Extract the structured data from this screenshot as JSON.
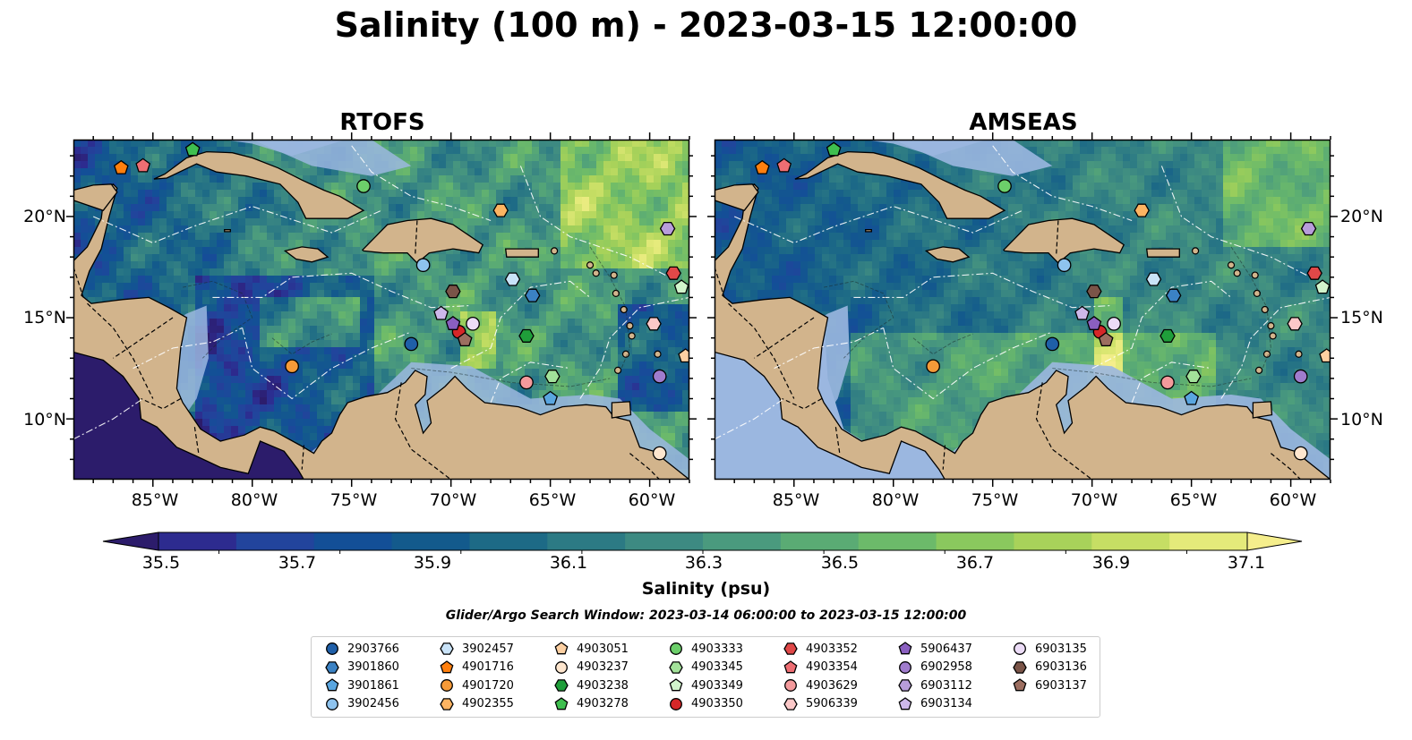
{
  "title": "Salinity (100 m) - 2023-03-15 12:00:00",
  "panels": [
    {
      "title": "RTOFS",
      "style": "rtofs"
    },
    {
      "title": "AMSEAS",
      "style": "amseas"
    }
  ],
  "map": {
    "lon_range": [
      -89,
      -58
    ],
    "lat_range": [
      7,
      23.8
    ],
    "lat_ticks": [
      "20°N",
      "15°N",
      "10°N"
    ],
    "lat_tick_values": [
      20,
      15,
      10
    ],
    "lon_ticks": [
      "85°W",
      "80°W",
      "75°W",
      "70°W",
      "65°W",
      "60°W"
    ],
    "lon_tick_values": [
      -85,
      -80,
      -75,
      -70,
      -65,
      -60
    ],
    "land_color": "#d2b48c",
    "shallow_water_color": "#9bb7e0"
  },
  "colorbar": {
    "label": "Salinity (psu)",
    "ticks": [
      "35.5",
      "35.7",
      "35.9",
      "36.1",
      "36.3",
      "36.5",
      "36.7",
      "36.9",
      "37.1"
    ],
    "tick_values": [
      35.5,
      35.7,
      35.9,
      36.1,
      36.3,
      36.5,
      36.7,
      36.9,
      37.1
    ],
    "range": [
      35.4,
      37.2
    ],
    "colors": [
      "#2c1c6b",
      "#2d2b8f",
      "#22449c",
      "#134f97",
      "#135a8c",
      "#1d6a86",
      "#2c7a84",
      "#3d8a82",
      "#4a9a7e",
      "#5aab74",
      "#6cba6a",
      "#8ac85e",
      "#a8d25a",
      "#c6de64",
      "#e4ea7a",
      "#f5ee8c"
    ]
  },
  "search_window": "Glider/Argo Search Window: 2023-03-14 06:00:00 to 2023-03-15 12:00:00",
  "legend": [
    {
      "label": "2903766",
      "color": "#1f5fa8",
      "shape": "circle"
    },
    {
      "label": "3901860",
      "color": "#3b82c4",
      "shape": "hexagon"
    },
    {
      "label": "3901861",
      "color": "#5aa6e0",
      "shape": "pentagon"
    },
    {
      "label": "3902456",
      "color": "#8ec3ee",
      "shape": "circle"
    },
    {
      "label": "3902457",
      "color": "#c9e3f8",
      "shape": "hexagon"
    },
    {
      "label": "4901716",
      "color": "#ff7f0e",
      "shape": "pentagon"
    },
    {
      "label": "4901720",
      "color": "#f59a38",
      "shape": "circle"
    },
    {
      "label": "4902355",
      "color": "#fdb462",
      "shape": "hexagon"
    },
    {
      "label": "4903051",
      "color": "#fdd0a2",
      "shape": "pentagon"
    },
    {
      "label": "4903237",
      "color": "#fee6ce",
      "shape": "circle"
    },
    {
      "label": "4903238",
      "color": "#1f9e3a",
      "shape": "hexagon"
    },
    {
      "label": "4903278",
      "color": "#3fbf4f",
      "shape": "pentagon"
    },
    {
      "label": "4903333",
      "color": "#6ccf6a",
      "shape": "circle"
    },
    {
      "label": "4903345",
      "color": "#a3e29a",
      "shape": "hexagon"
    },
    {
      "label": "4903349",
      "color": "#d2f5cc",
      "shape": "pentagon"
    },
    {
      "label": "4903350",
      "color": "#d62728",
      "shape": "circle"
    },
    {
      "label": "4903352",
      "color": "#e04848",
      "shape": "hexagon"
    },
    {
      "label": "4903354",
      "color": "#ee6e73",
      "shape": "pentagon"
    },
    {
      "label": "4903629",
      "color": "#f49a9c",
      "shape": "circle"
    },
    {
      "label": "5906339",
      "color": "#fbc8c8",
      "shape": "hexagon"
    },
    {
      "label": "5906437",
      "color": "#8a5fc0",
      "shape": "pentagon"
    },
    {
      "label": "6902958",
      "color": "#a07ccd",
      "shape": "circle"
    },
    {
      "label": "6903112",
      "color": "#b89ddb",
      "shape": "hexagon"
    },
    {
      "label": "6903134",
      "color": "#cdb8ea",
      "shape": "pentagon"
    },
    {
      "label": "6903135",
      "color": "#ecdcf7",
      "shape": "circle"
    },
    {
      "label": "6903136",
      "color": "#7a5448",
      "shape": "hexagon"
    },
    {
      "label": "6903137",
      "color": "#9c6e60",
      "shape": "pentagon"
    }
  ],
  "floats": [
    {
      "id": "2903766",
      "lon": -72.0,
      "lat": 13.7
    },
    {
      "id": "3901860",
      "lon": -65.9,
      "lat": 16.1
    },
    {
      "id": "3901861",
      "lon": -65.0,
      "lat": 11.0
    },
    {
      "id": "3902456",
      "lon": -71.4,
      "lat": 17.6
    },
    {
      "id": "3902457",
      "lon": -66.9,
      "lat": 16.9
    },
    {
      "id": "4901716",
      "lon": -86.6,
      "lat": 22.4
    },
    {
      "id": "4901720",
      "lon": -78.0,
      "lat": 12.6
    },
    {
      "id": "4902355",
      "lon": -67.5,
      "lat": 20.3
    },
    {
      "id": "4903051",
      "lon": -58.2,
      "lat": 13.1
    },
    {
      "id": "4903237",
      "lon": -59.5,
      "lat": 8.3
    },
    {
      "id": "4903238",
      "lon": -66.2,
      "lat": 14.1
    },
    {
      "id": "4903278",
      "lon": -83.0,
      "lat": 23.3
    },
    {
      "id": "4903333",
      "lon": -74.4,
      "lat": 21.5
    },
    {
      "id": "4903345",
      "lon": -64.9,
      "lat": 12.1
    },
    {
      "id": "4903349",
      "lon": -58.4,
      "lat": 16.5
    },
    {
      "id": "4903350",
      "lon": -69.6,
      "lat": 14.3
    },
    {
      "id": "4903352",
      "lon": -58.8,
      "lat": 17.2
    },
    {
      "id": "4903354",
      "lon": -85.5,
      "lat": 22.5
    },
    {
      "id": "4903629",
      "lon": -66.2,
      "lat": 11.8
    },
    {
      "id": "5906339",
      "lon": -59.8,
      "lat": 14.7
    },
    {
      "id": "5906437",
      "lon": -69.9,
      "lat": 14.7
    },
    {
      "id": "6902958",
      "lon": -59.5,
      "lat": 12.1
    },
    {
      "id": "6903112",
      "lon": -59.1,
      "lat": 19.4
    },
    {
      "id": "6903134",
      "lon": -70.5,
      "lat": 15.2
    },
    {
      "id": "6903135",
      "lon": -68.9,
      "lat": 14.7
    },
    {
      "id": "6903136",
      "lon": -69.9,
      "lat": 16.3
    },
    {
      "id": "6903137",
      "lon": -69.3,
      "lat": 13.9
    }
  ]
}
